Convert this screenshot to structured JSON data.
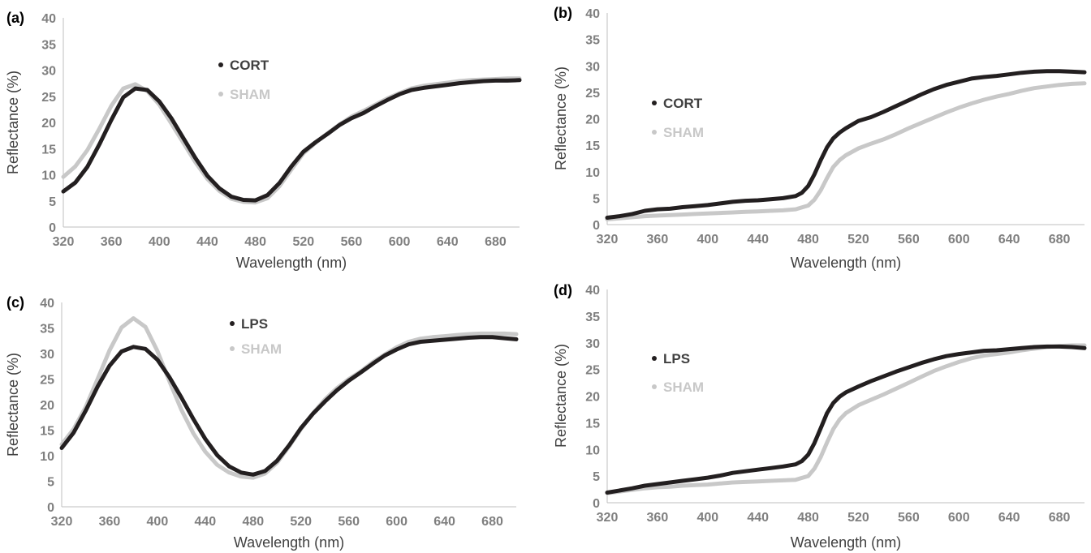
{
  "chart_data": [
    {
      "panel_label": "(a)",
      "type": "line",
      "xlabel": "Wavelength (nm)",
      "ylabel": "Reflectance (%)",
      "xlim": [
        320,
        700
      ],
      "ylim": [
        0,
        40
      ],
      "x_ticks": [
        "320",
        "360",
        "400",
        "440",
        "480",
        "520",
        "560",
        "600",
        "640",
        "680"
      ],
      "y_ticks": [
        "0",
        "5",
        "10",
        "15",
        "20",
        "25",
        "30",
        "35",
        "40"
      ],
      "grid": false,
      "legend_position": "center",
      "series": [
        {
          "name": "CORT",
          "color": "#231f20",
          "x": [
            320,
            330,
            340,
            350,
            360,
            370,
            380,
            390,
            400,
            410,
            420,
            430,
            440,
            450,
            460,
            470,
            480,
            490,
            500,
            510,
            520,
            530,
            540,
            550,
            560,
            570,
            580,
            590,
            600,
            610,
            620,
            630,
            640,
            650,
            660,
            670,
            680,
            690,
            700
          ],
          "y": [
            6.8,
            8.5,
            11.5,
            15.8,
            20.5,
            24.8,
            26.5,
            26.2,
            24.0,
            20.8,
            17.0,
            13.2,
            9.8,
            7.4,
            5.8,
            5.2,
            5.1,
            6.1,
            8.4,
            11.6,
            14.4,
            16.2,
            17.8,
            19.5,
            20.8,
            21.8,
            23.1,
            24.3,
            25.4,
            26.2,
            26.6,
            26.9,
            27.2,
            27.5,
            27.7,
            27.9,
            28.0,
            28.0,
            28.1
          ]
        },
        {
          "name": "SHAM",
          "color": "#c8c8c8",
          "x": [
            320,
            330,
            340,
            350,
            360,
            370,
            380,
            390,
            400,
            410,
            420,
            430,
            440,
            450,
            460,
            470,
            480,
            490,
            500,
            510,
            520,
            530,
            540,
            550,
            560,
            570,
            580,
            590,
            600,
            610,
            620,
            630,
            640,
            650,
            660,
            670,
            680,
            690,
            700
          ],
          "y": [
            9.6,
            11.6,
            14.7,
            18.8,
            23.2,
            26.5,
            27.3,
            26.0,
            23.4,
            19.8,
            16.1,
            12.4,
            9.2,
            6.9,
            5.4,
            4.8,
            4.7,
            5.5,
            7.8,
            11.0,
            14.1,
            16.1,
            17.9,
            19.6,
            21.1,
            22.2,
            23.4,
            24.6,
            25.6,
            26.5,
            27.0,
            27.3,
            27.6,
            27.9,
            28.1,
            28.2,
            28.3,
            28.4,
            28.4
          ]
        }
      ]
    },
    {
      "panel_label": "(b)",
      "type": "line",
      "xlabel": "Wavelength (nm)",
      "ylabel": "Reflectance (%)",
      "xlim": [
        320,
        700
      ],
      "ylim": [
        0,
        40
      ],
      "x_ticks": [
        "320",
        "360",
        "400",
        "440",
        "480",
        "520",
        "560",
        "600",
        "640",
        "680"
      ],
      "y_ticks": [
        "0",
        "5",
        "10",
        "15",
        "20",
        "25",
        "30",
        "35",
        "40"
      ],
      "grid": false,
      "legend_position": "center-left",
      "series": [
        {
          "name": "CORT",
          "color": "#231f20",
          "x": [
            320,
            330,
            340,
            350,
            360,
            370,
            380,
            390,
            400,
            410,
            420,
            430,
            440,
            450,
            460,
            470,
            475,
            480,
            485,
            490,
            495,
            500,
            505,
            510,
            520,
            530,
            540,
            550,
            560,
            570,
            580,
            590,
            600,
            610,
            620,
            630,
            640,
            650,
            660,
            670,
            680,
            690,
            700
          ],
          "y": [
            1.3,
            1.6,
            2.0,
            2.6,
            2.9,
            3.0,
            3.3,
            3.5,
            3.7,
            4.0,
            4.3,
            4.5,
            4.6,
            4.8,
            5.0,
            5.4,
            6.0,
            7.3,
            9.5,
            12.2,
            14.6,
            16.3,
            17.4,
            18.2,
            19.6,
            20.3,
            21.3,
            22.4,
            23.5,
            24.6,
            25.6,
            26.4,
            27.0,
            27.6,
            27.9,
            28.1,
            28.4,
            28.7,
            28.9,
            29.0,
            29.0,
            28.9,
            28.8
          ]
        },
        {
          "name": "SHAM",
          "color": "#c8c8c8",
          "x": [
            320,
            330,
            340,
            350,
            360,
            370,
            380,
            390,
            400,
            410,
            420,
            430,
            440,
            450,
            460,
            470,
            480,
            485,
            490,
            495,
            500,
            505,
            510,
            520,
            530,
            540,
            550,
            560,
            570,
            580,
            590,
            600,
            610,
            620,
            630,
            640,
            650,
            660,
            670,
            680,
            690,
            700
          ],
          "y": [
            1.0,
            1.2,
            1.4,
            1.6,
            1.7,
            1.8,
            1.9,
            2.0,
            2.1,
            2.2,
            2.3,
            2.4,
            2.5,
            2.6,
            2.7,
            2.9,
            3.6,
            4.7,
            6.5,
            8.8,
            10.9,
            12.2,
            13.1,
            14.4,
            15.3,
            16.1,
            17.1,
            18.2,
            19.2,
            20.2,
            21.2,
            22.1,
            22.9,
            23.6,
            24.2,
            24.7,
            25.3,
            25.8,
            26.1,
            26.4,
            26.6,
            26.7
          ]
        }
      ]
    },
    {
      "panel_label": "(c)",
      "type": "line",
      "xlabel": "Wavelength (nm)",
      "ylabel": "Reflectance (%)",
      "xlim": [
        320,
        700
      ],
      "ylim": [
        0,
        40
      ],
      "x_ticks": [
        "320",
        "360",
        "400",
        "440",
        "480",
        "520",
        "560",
        "600",
        "640",
        "680"
      ],
      "y_ticks": [
        "0",
        "5",
        "10",
        "15",
        "20",
        "25",
        "30",
        "35",
        "40"
      ],
      "grid": false,
      "legend_position": "center",
      "series": [
        {
          "name": "LPS",
          "color": "#231f20",
          "x": [
            320,
            330,
            340,
            350,
            360,
            370,
            380,
            390,
            400,
            410,
            420,
            430,
            440,
            450,
            460,
            470,
            480,
            490,
            500,
            510,
            520,
            530,
            540,
            550,
            560,
            570,
            580,
            590,
            600,
            610,
            620,
            630,
            640,
            650,
            660,
            670,
            680,
            690,
            700
          ],
          "y": [
            11.5,
            14.5,
            18.8,
            23.5,
            27.6,
            30.4,
            31.3,
            30.9,
            28.8,
            25.4,
            21.4,
            17.2,
            13.3,
            10.1,
            7.9,
            6.7,
            6.3,
            7.0,
            9.0,
            12.0,
            15.4,
            18.2,
            20.6,
            22.8,
            24.7,
            26.3,
            28.0,
            29.6,
            30.8,
            31.8,
            32.3,
            32.5,
            32.7,
            32.9,
            33.1,
            33.2,
            33.2,
            33.0,
            32.8
          ]
        },
        {
          "name": "SHAM",
          "color": "#c8c8c8",
          "x": [
            320,
            330,
            340,
            350,
            360,
            370,
            380,
            390,
            400,
            410,
            420,
            430,
            440,
            450,
            460,
            470,
            480,
            490,
            500,
            510,
            520,
            530,
            540,
            550,
            560,
            570,
            580,
            590,
            600,
            610,
            620,
            630,
            640,
            650,
            660,
            670,
            680,
            690,
            700
          ],
          "y": [
            12.2,
            15.2,
            19.5,
            25.0,
            30.6,
            35.1,
            36.9,
            35.2,
            30.5,
            24.6,
            19.0,
            14.4,
            10.8,
            8.2,
            6.7,
            5.9,
            5.7,
            6.5,
            8.6,
            11.8,
            15.2,
            18.3,
            21.0,
            23.2,
            25.0,
            26.5,
            28.3,
            29.8,
            31.2,
            32.3,
            32.9,
            33.2,
            33.4,
            33.6,
            33.8,
            33.9,
            33.9,
            33.9,
            33.8
          ]
        }
      ]
    },
    {
      "panel_label": "(d)",
      "type": "line",
      "xlabel": "Wavelength (nm)",
      "ylabel": "Reflectance (%)",
      "xlim": [
        320,
        700
      ],
      "ylim": [
        0,
        40
      ],
      "x_ticks": [
        "320",
        "360",
        "400",
        "440",
        "480",
        "520",
        "560",
        "600",
        "640",
        "680"
      ],
      "y_ticks": [
        "0",
        "5",
        "10",
        "15",
        "20",
        "25",
        "30",
        "35",
        "40"
      ],
      "grid": false,
      "legend_position": "center-left",
      "series": [
        {
          "name": "LPS",
          "color": "#231f20",
          "x": [
            320,
            330,
            340,
            350,
            360,
            370,
            380,
            390,
            400,
            410,
            420,
            430,
            440,
            450,
            460,
            470,
            475,
            480,
            485,
            490,
            495,
            500,
            505,
            510,
            520,
            530,
            540,
            550,
            560,
            570,
            580,
            590,
            600,
            610,
            620,
            630,
            640,
            650,
            660,
            670,
            680,
            690,
            700
          ],
          "y": [
            1.9,
            2.3,
            2.7,
            3.2,
            3.5,
            3.8,
            4.1,
            4.4,
            4.7,
            5.1,
            5.6,
            5.9,
            6.2,
            6.5,
            6.8,
            7.2,
            7.8,
            9.0,
            11.2,
            14.0,
            16.8,
            18.7,
            19.9,
            20.7,
            21.8,
            22.8,
            23.7,
            24.6,
            25.4,
            26.2,
            26.9,
            27.5,
            27.9,
            28.2,
            28.5,
            28.6,
            28.8,
            29.0,
            29.2,
            29.3,
            29.3,
            29.2,
            29.0
          ]
        },
        {
          "name": "SHAM",
          "color": "#c8c8c8",
          "x": [
            320,
            330,
            340,
            350,
            360,
            370,
            380,
            390,
            400,
            410,
            420,
            430,
            440,
            450,
            460,
            470,
            480,
            485,
            490,
            495,
            500,
            505,
            510,
            520,
            530,
            540,
            550,
            560,
            570,
            580,
            590,
            600,
            610,
            620,
            630,
            640,
            650,
            660,
            670,
            680,
            690,
            700
          ],
          "y": [
            1.8,
            2.1,
            2.4,
            2.7,
            2.9,
            3.0,
            3.2,
            3.3,
            3.4,
            3.6,
            3.8,
            3.9,
            4.0,
            4.1,
            4.2,
            4.3,
            5.0,
            6.4,
            8.6,
            11.3,
            13.8,
            15.6,
            16.8,
            18.3,
            19.3,
            20.3,
            21.4,
            22.5,
            23.6,
            24.7,
            25.6,
            26.4,
            27.1,
            27.6,
            27.9,
            28.2,
            28.6,
            28.9,
            29.2,
            29.4,
            29.5,
            29.5
          ]
        }
      ]
    }
  ]
}
